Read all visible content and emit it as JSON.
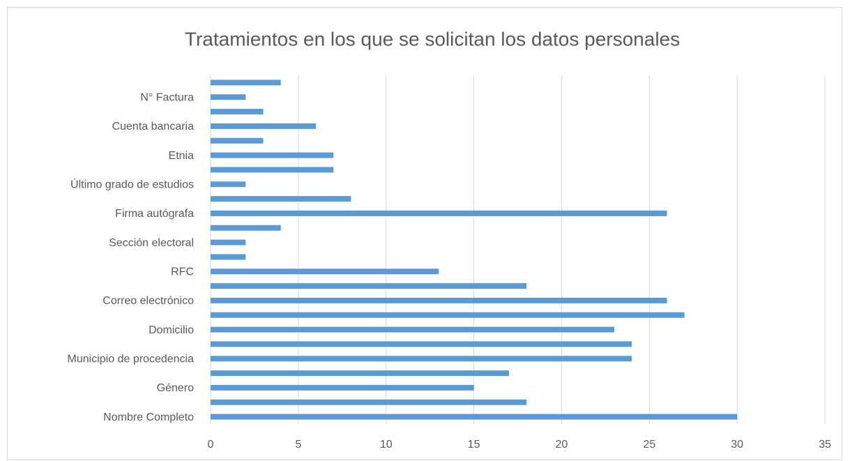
{
  "chart_data": {
    "type": "bar",
    "orientation": "horizontal",
    "title": "Tratamientos en los que se solicitan los datos personales",
    "categories": [
      "Nombre Completo",
      null,
      "Género",
      null,
      "Municipio de procedencia",
      null,
      "Domicilio",
      null,
      "Correo electrónico",
      null,
      "RFC",
      null,
      "Sección electoral",
      null,
      "Firma autógrafa",
      null,
      "Último grado de estudios",
      null,
      "Etnia",
      null,
      "Cuenta bancaria",
      null,
      "N° Factura",
      null
    ],
    "values": [
      30,
      18,
      15,
      17,
      24,
      24,
      23,
      27,
      26,
      18,
      13,
      2,
      2,
      4,
      26,
      8,
      2,
      7,
      7,
      3,
      6,
      3,
      2,
      4
    ],
    "color": "#5b9bd5",
    "xlim": [
      0,
      35
    ],
    "xticks": [
      0,
      5,
      10,
      15,
      20,
      25,
      30,
      35
    ],
    "grid": true
  }
}
